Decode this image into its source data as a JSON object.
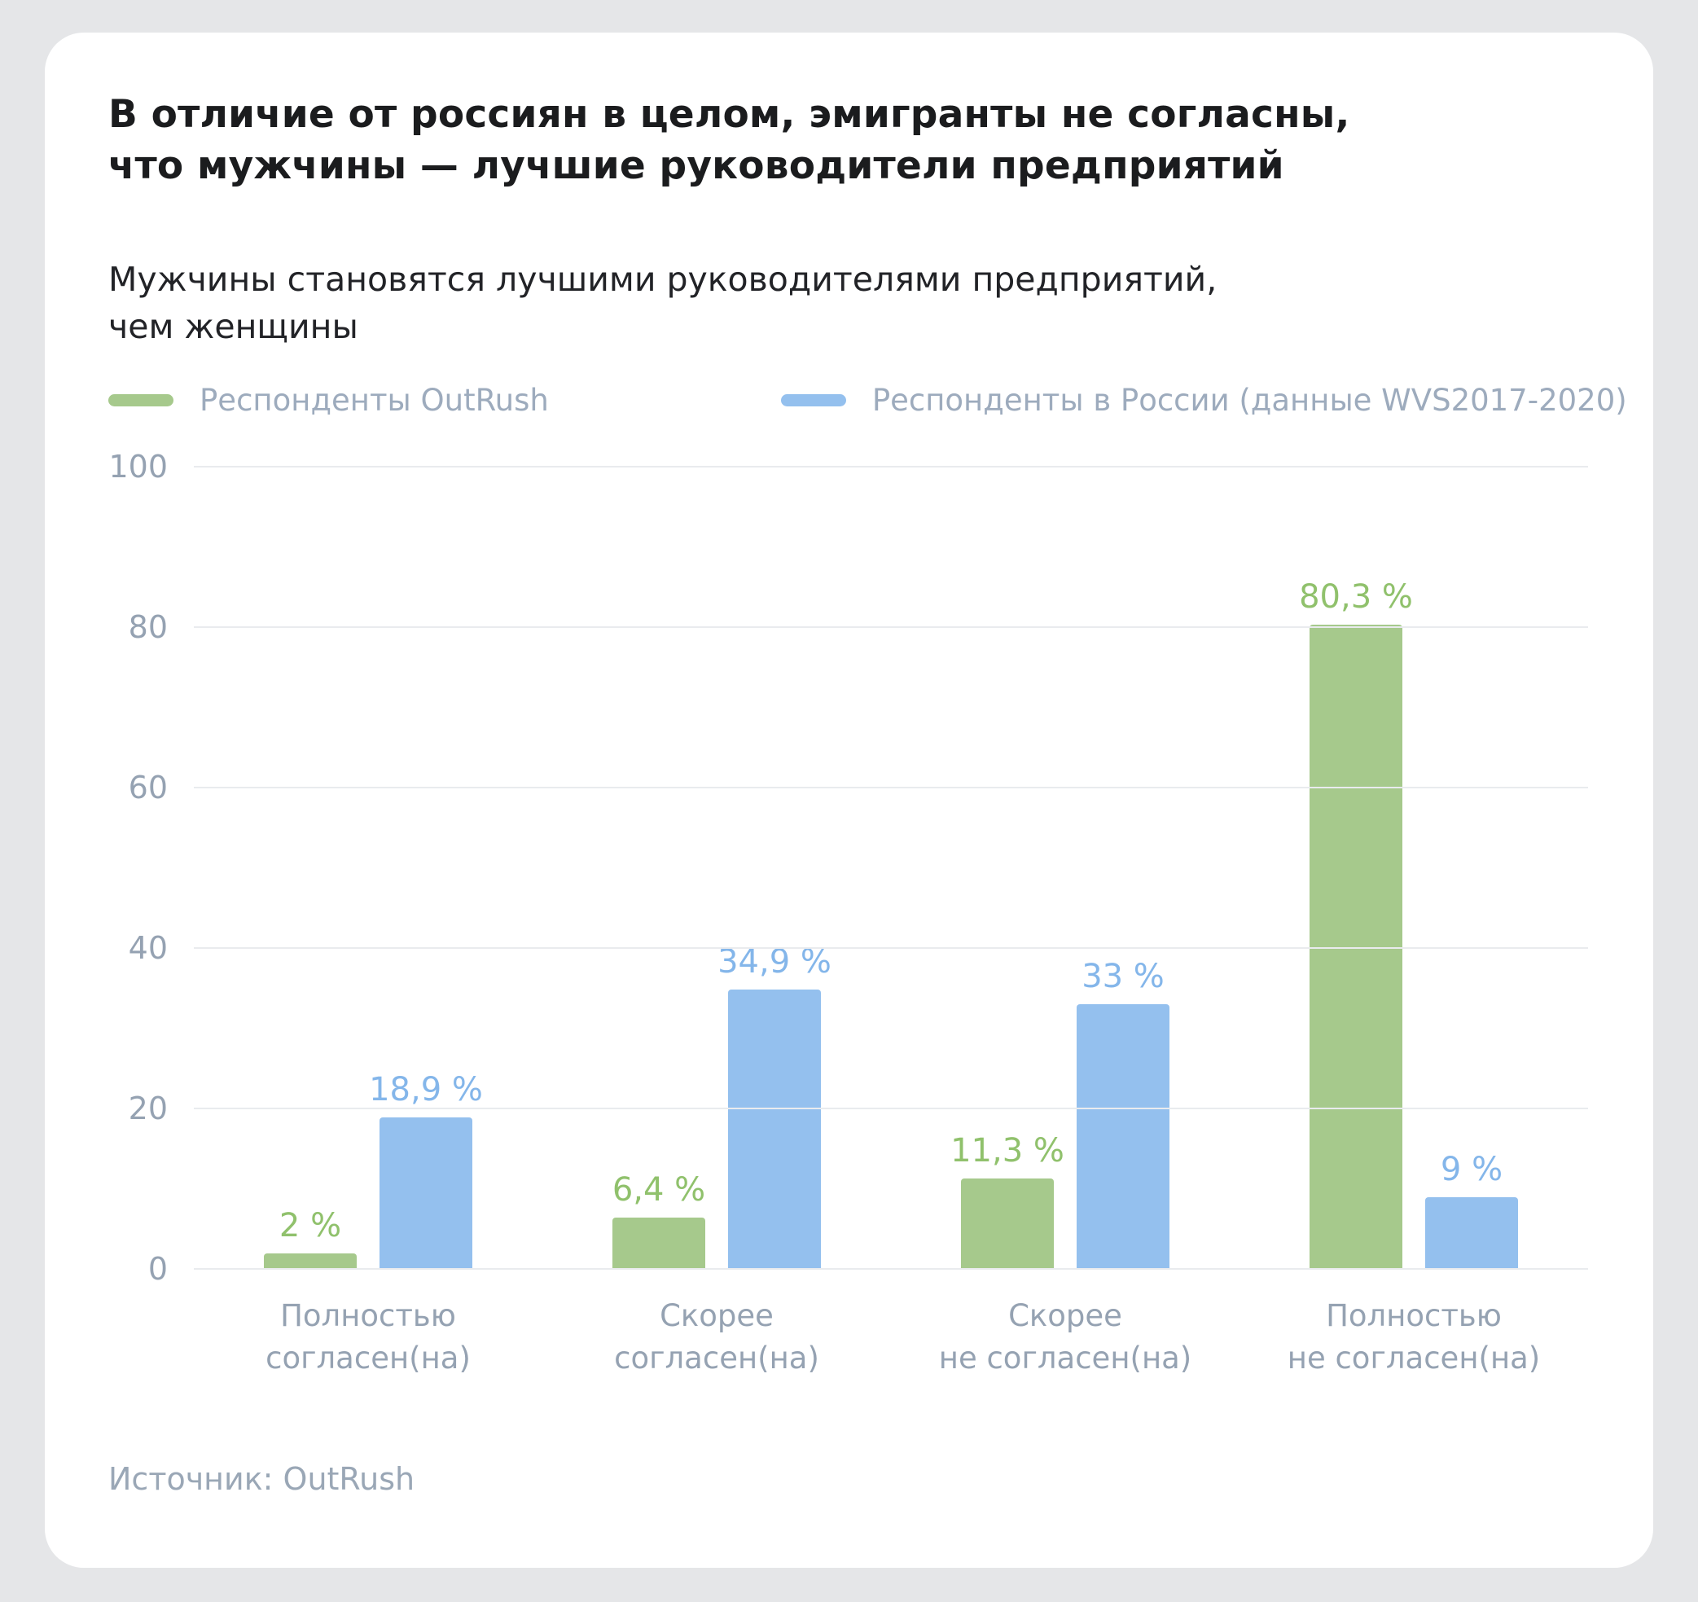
{
  "card": {
    "title": "В отличие от россиян в целом, эмигранты не согласны,\nчто мужчины — лучшие руководители предприятий",
    "subtitle": "Мужчины становятся лучшими руководителями предприятий,\nчем женщины",
    "source": "Источник: OutRush"
  },
  "legend": [
    {
      "label": "Респонденты OutRush",
      "color": "#a6c98c"
    },
    {
      "label": "Респонденты в России (данные WVS2017-2020)",
      "color": "#94c0ee"
    }
  ],
  "chart_data": {
    "type": "bar",
    "title": "Мужчины становятся лучшими руководителями предприятий, чем женщины",
    "categories": [
      "Полностью\nсогласен(на)",
      "Скорее\nсогласен(на)",
      "Скорее\nне согласен(на)",
      "Полностью\nне согласен(на)"
    ],
    "series": [
      {
        "name": "Респонденты OutRush",
        "values": [
          2,
          6.4,
          11.3,
          80.3
        ],
        "labels": [
          "2 %",
          "6,4 %",
          "11,3 %",
          "80,3 %"
        ],
        "color": "#a6c98c",
        "label_color": "#90c16c"
      },
      {
        "name": "Респонденты в России (данные WVS2017-2020)",
        "values": [
          18.9,
          34.9,
          33,
          9
        ],
        "labels": [
          "18,9 %",
          "34,9 %",
          "33 %",
          "9 %"
        ],
        "color": "#94c0ee",
        "label_color": "#84b6ea"
      }
    ],
    "y_ticks": [
      0,
      20,
      40,
      60,
      80,
      100
    ],
    "ylim": [
      0,
      100
    ],
    "grid": true,
    "legend_position": "top",
    "xlabel": "",
    "ylabel": ""
  }
}
